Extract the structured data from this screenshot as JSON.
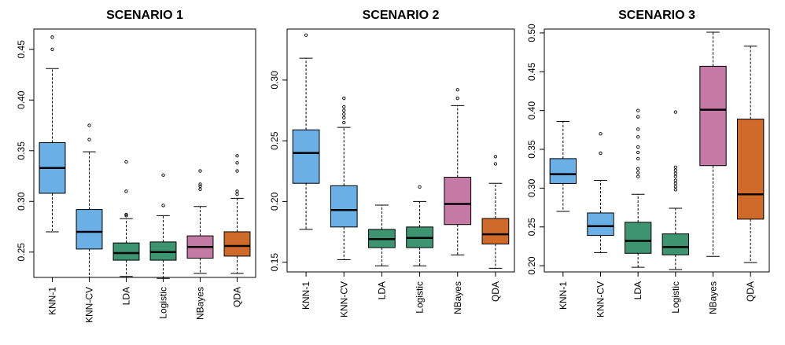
{
  "chart_data": [
    {
      "type": "boxplot",
      "title": "SCENARIO 1",
      "categories": [
        "KNN-1",
        "KNN-CV",
        "LDA",
        "Logistic",
        "NBayes",
        "QDA"
      ],
      "colors": [
        "#6aafe6",
        "#6aafe6",
        "#3c9470",
        "#3c9470",
        "#c47aa5",
        "#d06a2a"
      ],
      "ylim": [
        0.225,
        0.47
      ],
      "yticks": [
        0.25,
        0.3,
        0.35,
        0.4,
        0.45
      ],
      "ytick_labels": [
        "0.25",
        "0.30",
        "0.35",
        "0.40",
        "0.45"
      ],
      "boxes": [
        {
          "whisker_low": 0.27,
          "q1": 0.308,
          "median": 0.333,
          "q3": 0.358,
          "whisker_high": 0.431,
          "outliers": [
            0.45,
            0.462
          ]
        },
        {
          "whisker_low": 0.225,
          "q1": 0.253,
          "median": 0.27,
          "q3": 0.292,
          "whisker_high": 0.349,
          "outliers": [
            0.361,
            0.375
          ]
        },
        {
          "whisker_low": 0.226,
          "q1": 0.242,
          "median": 0.249,
          "q3": 0.259,
          "whisker_high": 0.283,
          "outliers": [
            0.286,
            0.287,
            0.31,
            0.339
          ]
        },
        {
          "whisker_low": 0.224,
          "q1": 0.242,
          "median": 0.25,
          "q3": 0.26,
          "whisker_high": 0.286,
          "outliers": [
            0.296,
            0.326
          ]
        },
        {
          "whisker_low": 0.229,
          "q1": 0.244,
          "median": 0.255,
          "q3": 0.266,
          "whisker_high": 0.295,
          "outliers": [
            0.312,
            0.315,
            0.317,
            0.33
          ]
        },
        {
          "whisker_low": 0.229,
          "q1": 0.246,
          "median": 0.256,
          "q3": 0.27,
          "whisker_high": 0.303,
          "outliers": [
            0.307,
            0.31,
            0.33,
            0.338,
            0.345
          ]
        }
      ]
    },
    {
      "type": "boxplot",
      "title": "SCENARIO 2",
      "categories": [
        "KNN-1",
        "KNN-CV",
        "LDA",
        "Logistic",
        "NBayes",
        "QDA"
      ],
      "colors": [
        "#6aafe6",
        "#6aafe6",
        "#3c9470",
        "#3c9470",
        "#c47aa5",
        "#d06a2a"
      ],
      "ylim": [
        0.142,
        0.342
      ],
      "yticks": [
        0.15,
        0.2,
        0.25,
        0.3
      ],
      "ytick_labels": [
        "0.15",
        "0.20",
        "0.25",
        "0.30"
      ],
      "boxes": [
        {
          "whisker_low": 0.177,
          "q1": 0.215,
          "median": 0.24,
          "q3": 0.259,
          "whisker_high": 0.318,
          "outliers": [
            0.337
          ]
        },
        {
          "whisker_low": 0.152,
          "q1": 0.179,
          "median": 0.193,
          "q3": 0.213,
          "whisker_high": 0.261,
          "outliers": [
            0.265,
            0.269,
            0.272,
            0.275,
            0.278,
            0.285
          ]
        },
        {
          "whisker_low": 0.147,
          "q1": 0.162,
          "median": 0.169,
          "q3": 0.177,
          "whisker_high": 0.197,
          "outliers": []
        },
        {
          "whisker_low": 0.147,
          "q1": 0.162,
          "median": 0.17,
          "q3": 0.179,
          "whisker_high": 0.2,
          "outliers": [
            0.212
          ]
        },
        {
          "whisker_low": 0.156,
          "q1": 0.181,
          "median": 0.198,
          "q3": 0.22,
          "whisker_high": 0.279,
          "outliers": [
            0.285,
            0.292
          ]
        },
        {
          "whisker_low": 0.145,
          "q1": 0.165,
          "median": 0.173,
          "q3": 0.186,
          "whisker_high": 0.215,
          "outliers": [
            0.231,
            0.237
          ]
        }
      ]
    },
    {
      "type": "boxplot",
      "title": "SCENARIO 3",
      "categories": [
        "KNN-1",
        "KNN-CV",
        "LDA",
        "Logistic",
        "NBayes",
        "QDA"
      ],
      "colors": [
        "#6aafe6",
        "#6aafe6",
        "#3c9470",
        "#3c9470",
        "#c47aa5",
        "#d06a2a"
      ],
      "ylim": [
        0.192,
        0.505
      ],
      "yticks": [
        0.2,
        0.25,
        0.3,
        0.35,
        0.4,
        0.45,
        0.5
      ],
      "ytick_labels": [
        "0.20",
        "0.25",
        "0.30",
        "0.35",
        "0.40",
        "0.45",
        "0.50"
      ],
      "boxes": [
        {
          "whisker_low": 0.27,
          "q1": 0.306,
          "median": 0.318,
          "q3": 0.338,
          "whisker_high": 0.386,
          "outliers": []
        },
        {
          "whisker_low": 0.217,
          "q1": 0.239,
          "median": 0.251,
          "q3": 0.268,
          "whisker_high": 0.31,
          "outliers": [
            0.345,
            0.37
          ]
        },
        {
          "whisker_low": 0.198,
          "q1": 0.216,
          "median": 0.232,
          "q3": 0.256,
          "whisker_high": 0.292,
          "outliers": [
            0.315,
            0.32,
            0.325,
            0.338,
            0.346,
            0.353,
            0.366,
            0.376,
            0.392,
            0.4
          ]
        },
        {
          "whisker_low": 0.195,
          "q1": 0.214,
          "median": 0.224,
          "q3": 0.241,
          "whisker_high": 0.274,
          "outliers": [
            0.298,
            0.302,
            0.306,
            0.31,
            0.315,
            0.319,
            0.323,
            0.327,
            0.398
          ]
        },
        {
          "whisker_low": 0.212,
          "q1": 0.329,
          "median": 0.401,
          "q3": 0.457,
          "whisker_high": 0.501,
          "outliers": []
        },
        {
          "whisker_low": 0.204,
          "q1": 0.26,
          "median": 0.292,
          "q3": 0.389,
          "whisker_high": 0.483,
          "outliers": []
        }
      ]
    }
  ]
}
